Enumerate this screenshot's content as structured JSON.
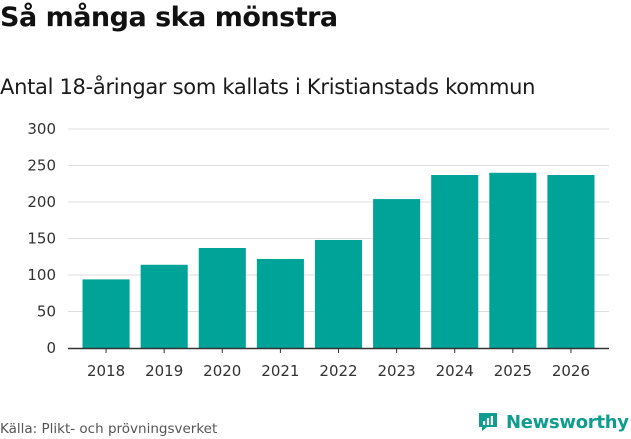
{
  "header": {
    "title": "Så många ska mönstra",
    "subtitle": "Antal 18-åringar som kallats i Kristianstads kommun"
  },
  "footer": {
    "source": "Källa: Plikt- och prövningsverket",
    "brand": "Newsworthy"
  },
  "colors": {
    "bar": "#00a398",
    "grid": "#dddddd",
    "axis": "#333333",
    "brand": "#0f9d8e"
  },
  "chart_data": {
    "type": "bar",
    "title": "Så många ska mönstra",
    "subtitle": "Antal 18-åringar som kallats i Kristianstads kommun",
    "xlabel": "",
    "ylabel": "",
    "categories": [
      "2018",
      "2019",
      "2020",
      "2021",
      "2022",
      "2023",
      "2024",
      "2025",
      "2026"
    ],
    "values": [
      94,
      114,
      137,
      122,
      148,
      204,
      237,
      240,
      237
    ],
    "ylim": [
      0,
      300
    ],
    "yticks": [
      0,
      50,
      100,
      150,
      200,
      250,
      300
    ],
    "grid": true,
    "legend": "none"
  }
}
